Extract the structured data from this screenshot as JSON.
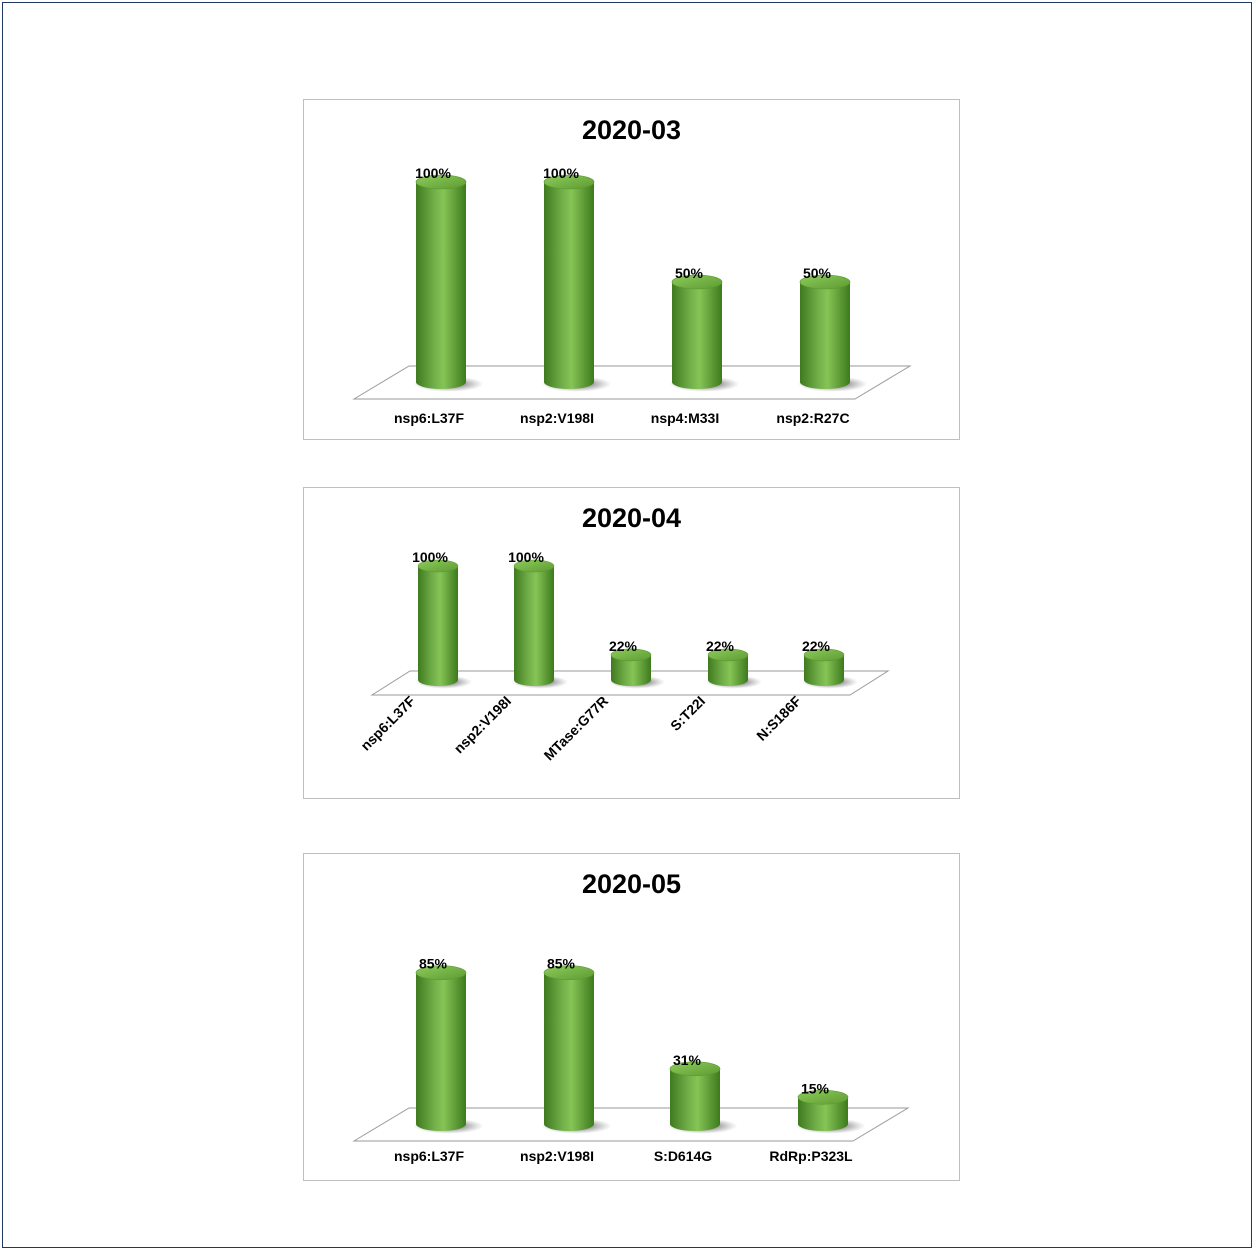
{
  "chart_data": [
    {
      "type": "bar",
      "title": "2020-03",
      "categories": [
        "nsp6:L37F",
        "nsp2:V198I",
        "nsp4:M33I",
        "nsp2:R27C"
      ],
      "values": [
        100,
        100,
        50,
        50
      ],
      "data_labels": [
        "100%",
        "100%",
        "50%",
        "50%"
      ],
      "ylim": [
        0,
        100
      ],
      "grid": false,
      "legend": "none",
      "color": "#70ad47"
    },
    {
      "type": "bar",
      "title": "2020-04",
      "categories": [
        "nsp6:L37F",
        "nsp2:V198I",
        "MTase:G77R",
        "S:T22I",
        "N:S186F"
      ],
      "values": [
        100,
        100,
        22,
        22,
        22
      ],
      "data_labels": [
        "100%",
        "100%",
        "22%",
        "22%",
        "22%"
      ],
      "ylim": [
        0,
        100
      ],
      "grid": false,
      "legend": "none",
      "color": "#70ad47"
    },
    {
      "type": "bar",
      "title": "2020-05",
      "categories": [
        "nsp6:L37F",
        "nsp2:V198I",
        "S:D614G",
        "RdRp:P323L"
      ],
      "values": [
        85,
        85,
        31,
        15
      ],
      "data_labels": [
        "85%",
        "85%",
        "31%",
        "15%"
      ],
      "ylim": [
        0,
        100
      ],
      "grid": false,
      "legend": "none",
      "color": "#70ad47"
    }
  ]
}
